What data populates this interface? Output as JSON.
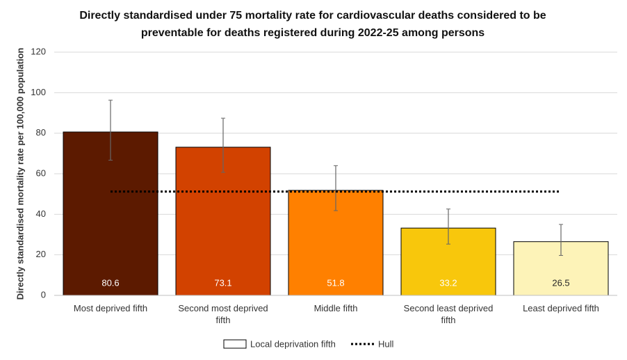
{
  "chart_data": {
    "type": "bar",
    "title": "Directly standardised under 75 mortality rate for cardiovascular deaths considered to be preventable for deaths registered during 2022-25 among persons",
    "y_label": "Directly standardised mortality rate per 100,000 population",
    "categories": [
      "Most deprived fifth",
      "Second most deprived fifth",
      "Middle fifth",
      "Second least deprived fifth",
      "Least deprived fifth"
    ],
    "series": [
      {
        "name": "Local deprivation fifth",
        "values": [
          80.6,
          73.1,
          51.8,
          33.2,
          26.5
        ],
        "ci_lower": [
          66.7,
          60.7,
          41.8,
          25.3,
          19.7
        ],
        "ci_upper": [
          96.3,
          87.4,
          64.0,
          42.6,
          35.0
        ],
        "colors": [
          "#5c1a00",
          "#d24200",
          "#ff8000",
          "#f8c70c",
          "#fdf3b8"
        ],
        "label_colors": [
          "#ffffff",
          "#ffffff",
          "#ffffff",
          "#ffffff",
          "#262626"
        ]
      }
    ],
    "reference_line": {
      "name": "Hull",
      "value": 51.2,
      "color": "#000000"
    },
    "ylim": [
      0,
      120
    ],
    "yticks": [
      0,
      20,
      40,
      60,
      80,
      100,
      120
    ],
    "grid": true
  }
}
